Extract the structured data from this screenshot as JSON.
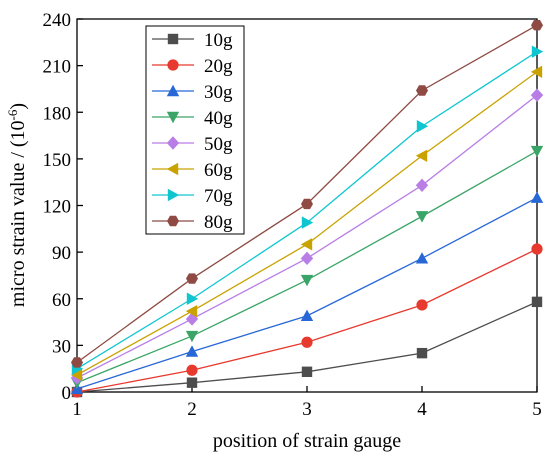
{
  "chart_data": {
    "type": "line",
    "xlabel": "position of strain gauge",
    "ylabel_main": "micro strain value / (10",
    "ylabel_sup": "-6",
    "ylabel_close": ")",
    "xlim": [
      1,
      5
    ],
    "ylim": [
      0,
      240
    ],
    "x": [
      1,
      2,
      3,
      4,
      5
    ],
    "xticks": [
      "1",
      "2",
      "3",
      "4",
      "5"
    ],
    "yticks": [
      "0",
      "30",
      "60",
      "90",
      "120",
      "150",
      "180",
      "210",
      "240"
    ],
    "grid": false,
    "legend_position": "top-left",
    "series": [
      {
        "name": "10g",
        "values": [
          0,
          6,
          13,
          25,
          58
        ],
        "color": "#4d4d4d",
        "marker": "square"
      },
      {
        "name": "20g",
        "values": [
          0,
          14,
          32,
          56,
          92
        ],
        "color": "#e8392e",
        "marker": "circle"
      },
      {
        "name": "30g",
        "values": [
          2,
          26,
          49,
          86,
          125
        ],
        "color": "#2767d6",
        "marker": "triangle-up"
      },
      {
        "name": "40g",
        "values": [
          6,
          36,
          72,
          113,
          155
        ],
        "color": "#3aa566",
        "marker": "triangle-down"
      },
      {
        "name": "50g",
        "values": [
          9,
          47,
          86,
          133,
          191
        ],
        "color": "#b87ee6",
        "marker": "diamond"
      },
      {
        "name": "60g",
        "values": [
          11,
          52,
          95,
          152,
          206
        ],
        "color": "#c9a200",
        "marker": "triangle-left"
      },
      {
        "name": "70g",
        "values": [
          15,
          60,
          109,
          171,
          219
        ],
        "color": "#0fc6d0",
        "marker": "triangle-right"
      },
      {
        "name": "80g",
        "values": [
          19,
          73,
          121,
          194,
          236
        ],
        "color": "#8e4a43",
        "marker": "hexagon"
      }
    ]
  }
}
